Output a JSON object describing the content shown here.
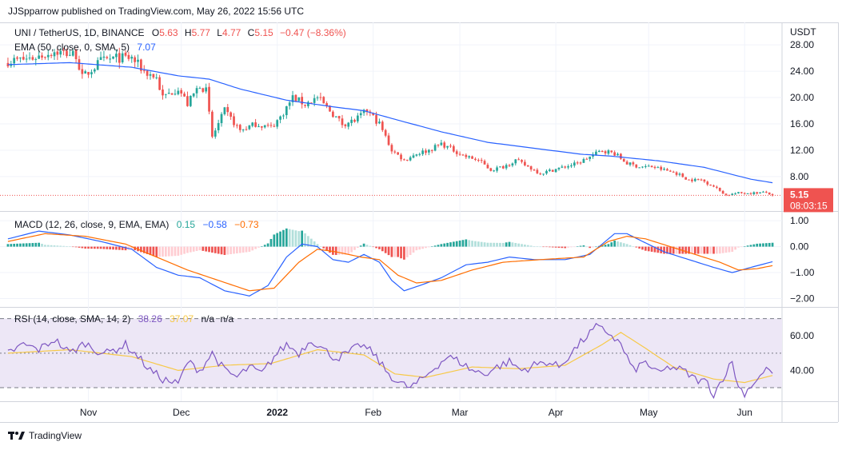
{
  "header": {
    "publisher_line": "JJSpparrow published on TradingView.com, May 26, 2022 15:56 UTC"
  },
  "footer": {
    "brand": "TradingView"
  },
  "colors": {
    "up": "#26a69a",
    "down": "#ef5350",
    "ema": "#2962ff",
    "macd_line": "#2962ff",
    "signal_line": "#ff6d00",
    "hist_up_strong": "#26a69a",
    "hist_up_weak": "#b2dfdb",
    "hist_down_strong": "#ef5350",
    "hist_down_weak": "#ffcdd2",
    "rsi_line": "#7e57c2",
    "rsi_ma": "#f7c948",
    "rsi_band": "#ede7f6",
    "price_tag": "#ef5350"
  },
  "chart_data": [
    {
      "type": "candlestick",
      "pane": "price",
      "legend_line1": {
        "symbol": "UNI / TetherUS, 1D, BINANCE",
        "o_label": "O",
        "o_value": "5.63",
        "h_label": "H",
        "h_value": "5.77",
        "l_label": "L",
        "l_value": "4.77",
        "c_label": "C",
        "c_value": "5.15",
        "change": "−0.47 (−8.36%)"
      },
      "legend_line2": {
        "name": "EMA (50, close, 0, SMA, 5)",
        "value": "7.07"
      },
      "axis_unit": "USDT",
      "y_ticks": [
        "28.00",
        "24.00",
        "20.00",
        "16.00",
        "12.00",
        "8.00"
      ],
      "ylim": [
        3.5,
        28.5
      ],
      "last_price_tag": "5.15",
      "countdown": "08:03:15",
      "last_price": 5.15,
      "price_anchors": [
        [
          0,
          25.5
        ],
        [
          8,
          26
        ],
        [
          15,
          27
        ],
        [
          22,
          26.5
        ],
        [
          24,
          23
        ],
        [
          30,
          25.5
        ],
        [
          35,
          26
        ],
        [
          40,
          26
        ],
        [
          44,
          24
        ],
        [
          48,
          23
        ],
        [
          50,
          20
        ],
        [
          55,
          21.5
        ],
        [
          58,
          19
        ],
        [
          62,
          22
        ],
        [
          64,
          21
        ],
        [
          66,
          14
        ],
        [
          70,
          18
        ],
        [
          75,
          15
        ],
        [
          80,
          16
        ],
        [
          85,
          15.5
        ],
        [
          88,
          17
        ],
        [
          92,
          20
        ],
        [
          96,
          19
        ],
        [
          100,
          20
        ],
        [
          104,
          18
        ],
        [
          108,
          16
        ],
        [
          112,
          16.5
        ],
        [
          116,
          18
        ],
        [
          120,
          16
        ],
        [
          124,
          12
        ],
        [
          128,
          10.5
        ],
        [
          132,
          11.5
        ],
        [
          136,
          12
        ],
        [
          140,
          13
        ],
        [
          144,
          12
        ],
        [
          148,
          11
        ],
        [
          152,
          10.5
        ],
        [
          156,
          9
        ],
        [
          160,
          9.5
        ],
        [
          164,
          10.5
        ],
        [
          168,
          9.5
        ],
        [
          172,
          8.5
        ],
        [
          176,
          9
        ],
        [
          180,
          9.5
        ],
        [
          184,
          10
        ],
        [
          188,
          11
        ],
        [
          192,
          12
        ],
        [
          196,
          11.5
        ],
        [
          200,
          10
        ],
        [
          204,
          9.5
        ],
        [
          208,
          9.5
        ],
        [
          212,
          9
        ],
        [
          216,
          8.5
        ],
        [
          220,
          7.5
        ],
        [
          224,
          7.5
        ],
        [
          228,
          6.5
        ],
        [
          232,
          5.2
        ],
        [
          236,
          5.5
        ],
        [
          240,
          5.5
        ],
        [
          245,
          5.6
        ],
        [
          247,
          5.15
        ]
      ],
      "ema_anchors": [
        [
          0,
          25
        ],
        [
          20,
          25.3
        ],
        [
          40,
          24.6
        ],
        [
          55,
          23.3
        ],
        [
          65,
          22.8
        ],
        [
          75,
          21.3
        ],
        [
          90,
          19.6
        ],
        [
          105,
          18.6
        ],
        [
          115,
          18
        ],
        [
          125,
          16.7
        ],
        [
          140,
          14.8
        ],
        [
          155,
          13.2
        ],
        [
          170,
          12.3
        ],
        [
          185,
          11.4
        ],
        [
          195,
          11.1
        ],
        [
          210,
          10.4
        ],
        [
          225,
          9.4
        ],
        [
          240,
          7.6
        ],
        [
          247,
          7.07
        ]
      ]
    },
    {
      "type": "bar",
      "pane": "macd",
      "legend": {
        "name": "MACD (12, 26, close, 9, EMA, EMA)",
        "hist": "0.15",
        "macd": "−0.58",
        "signal": "−0.73"
      },
      "y_ticks": [
        "1.00",
        "0.00",
        "−1.00",
        "−2.00"
      ],
      "ylim": [
        -2.2,
        1.25
      ],
      "macd_anchors": [
        [
          0,
          0.3
        ],
        [
          10,
          0.6
        ],
        [
          20,
          0.45
        ],
        [
          30,
          0.2
        ],
        [
          40,
          -0.1
        ],
        [
          48,
          -0.8
        ],
        [
          55,
          -1.1
        ],
        [
          62,
          -1.2
        ],
        [
          70,
          -1.7
        ],
        [
          78,
          -1.9
        ],
        [
          84,
          -1.5
        ],
        [
          90,
          -0.4
        ],
        [
          95,
          0.1
        ],
        [
          100,
          0.0
        ],
        [
          105,
          -0.5
        ],
        [
          110,
          -0.6
        ],
        [
          115,
          -0.3
        ],
        [
          120,
          -0.6
        ],
        [
          124,
          -1.3
        ],
        [
          128,
          -1.7
        ],
        [
          133,
          -1.5
        ],
        [
          140,
          -1.2
        ],
        [
          148,
          -0.7
        ],
        [
          155,
          -0.6
        ],
        [
          162,
          -0.4
        ],
        [
          170,
          -0.5
        ],
        [
          180,
          -0.5
        ],
        [
          188,
          -0.3
        ],
        [
          196,
          0.5
        ],
        [
          200,
          0.5
        ],
        [
          205,
          0.2
        ],
        [
          212,
          -0.2
        ],
        [
          220,
          -0.5
        ],
        [
          228,
          -0.8
        ],
        [
          234,
          -1.0
        ],
        [
          240,
          -0.8
        ],
        [
          247,
          -0.58
        ]
      ],
      "signal_anchors": [
        [
          0,
          0.2
        ],
        [
          12,
          0.5
        ],
        [
          25,
          0.4
        ],
        [
          38,
          0.1
        ],
        [
          48,
          -0.4
        ],
        [
          58,
          -0.9
        ],
        [
          68,
          -1.3
        ],
        [
          78,
          -1.7
        ],
        [
          86,
          -1.6
        ],
        [
          94,
          -0.6
        ],
        [
          100,
          -0.1
        ],
        [
          106,
          -0.2
        ],
        [
          114,
          -0.4
        ],
        [
          120,
          -0.5
        ],
        [
          126,
          -1.1
        ],
        [
          132,
          -1.4
        ],
        [
          140,
          -1.3
        ],
        [
          150,
          -0.9
        ],
        [
          160,
          -0.6
        ],
        [
          172,
          -0.5
        ],
        [
          186,
          -0.4
        ],
        [
          194,
          0.2
        ],
        [
          200,
          0.4
        ],
        [
          206,
          0.3
        ],
        [
          214,
          0.0
        ],
        [
          222,
          -0.3
        ],
        [
          230,
          -0.6
        ],
        [
          236,
          -0.9
        ],
        [
          242,
          -0.85
        ],
        [
          247,
          -0.73
        ]
      ]
    },
    {
      "type": "line",
      "pane": "rsi",
      "legend": {
        "name": "RSI (14, close, SMA, 14, 2)",
        "rsi": "38.26",
        "ma": "37.07",
        "na1": "n/a",
        "na2": "n/a"
      },
      "y_ticks": [
        "60.00",
        "40.00"
      ],
      "ylim": [
        24,
        74
      ],
      "band_upper": 70,
      "band_lower": 30,
      "band_mid": 50,
      "rsi_anchors": [
        [
          0,
          50
        ],
        [
          5,
          55
        ],
        [
          10,
          52
        ],
        [
          15,
          58
        ],
        [
          20,
          50
        ],
        [
          25,
          56
        ],
        [
          28,
          52
        ],
        [
          32,
          50
        ],
        [
          38,
          55
        ],
        [
          42,
          48
        ],
        [
          46,
          40
        ],
        [
          50,
          35
        ],
        [
          55,
          32
        ],
        [
          58,
          45
        ],
        [
          62,
          40
        ],
        [
          66,
          50
        ],
        [
          70,
          40
        ],
        [
          74,
          36
        ],
        [
          78,
          42
        ],
        [
          82,
          38
        ],
        [
          86,
          48
        ],
        [
          90,
          55
        ],
        [
          94,
          50
        ],
        [
          98,
          58
        ],
        [
          102,
          52
        ],
        [
          106,
          47
        ],
        [
          110,
          50
        ],
        [
          114,
          55
        ],
        [
          118,
          50
        ],
        [
          122,
          40
        ],
        [
          126,
          33
        ],
        [
          130,
          30
        ],
        [
          134,
          35
        ],
        [
          138,
          42
        ],
        [
          142,
          48
        ],
        [
          146,
          45
        ],
        [
          150,
          40
        ],
        [
          154,
          38
        ],
        [
          158,
          42
        ],
        [
          162,
          45
        ],
        [
          166,
          40
        ],
        [
          170,
          43
        ],
        [
          174,
          45
        ],
        [
          178,
          42
        ],
        [
          182,
          50
        ],
        [
          186,
          58
        ],
        [
          190,
          65
        ],
        [
          194,
          62
        ],
        [
          198,
          55
        ],
        [
          202,
          40
        ],
        [
          206,
          45
        ],
        [
          210,
          38
        ],
        [
          214,
          42
        ],
        [
          218,
          40
        ],
        [
          222,
          35
        ],
        [
          226,
          33
        ],
        [
          228,
          26
        ],
        [
          231,
          36
        ],
        [
          234,
          45
        ],
        [
          236,
          30
        ],
        [
          238,
          27
        ],
        [
          242,
          35
        ],
        [
          246,
          42
        ],
        [
          247,
          38.26
        ]
      ],
      "ma_anchors": [
        [
          0,
          50
        ],
        [
          20,
          52
        ],
        [
          40,
          48
        ],
        [
          55,
          40
        ],
        [
          70,
          43
        ],
        [
          85,
          44
        ],
        [
          100,
          52
        ],
        [
          115,
          49
        ],
        [
          125,
          38
        ],
        [
          135,
          36
        ],
        [
          150,
          42
        ],
        [
          165,
          41
        ],
        [
          180,
          43
        ],
        [
          192,
          55
        ],
        [
          198,
          62
        ],
        [
          205,
          54
        ],
        [
          215,
          42
        ],
        [
          228,
          35
        ],
        [
          238,
          33
        ],
        [
          247,
          37.07
        ]
      ]
    }
  ],
  "x_axis": {
    "ticks": [
      {
        "label": "Nov",
        "bar": 26
      },
      {
        "label": "Dec",
        "bar": 56
      },
      {
        "label": "2022",
        "bar": 87,
        "bold": true
      },
      {
        "label": "Feb",
        "bar": 118
      },
      {
        "label": "Mar",
        "bar": 146
      },
      {
        "label": "Apr",
        "bar": 177
      },
      {
        "label": "May",
        "bar": 207
      },
      {
        "label": "Jun",
        "bar": 238
      }
    ],
    "bar_count": 248
  }
}
